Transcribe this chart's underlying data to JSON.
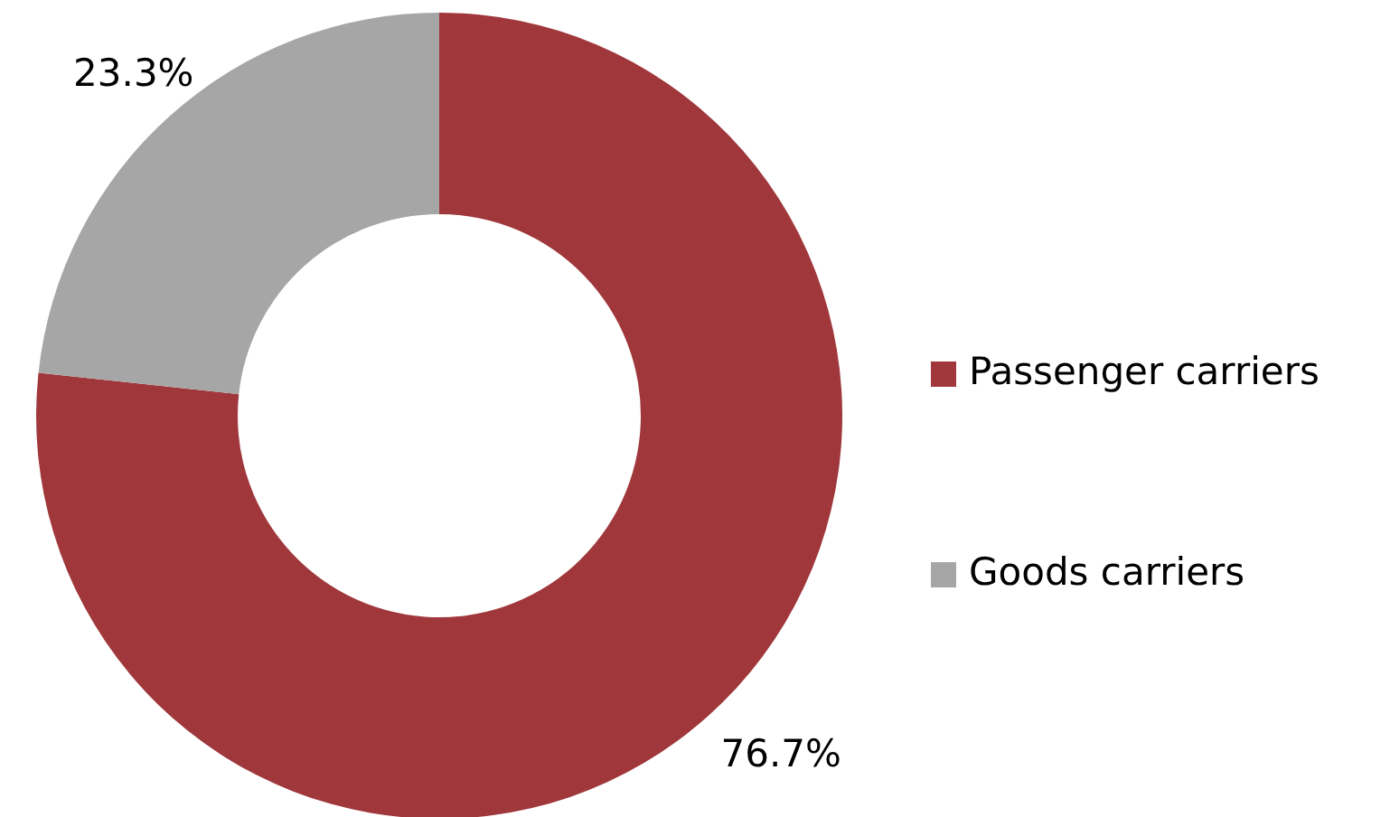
{
  "chart_data": {
    "type": "donut",
    "categories": [
      "Passenger carriers",
      "Goods carriers"
    ],
    "values": [
      76.7,
      23.3
    ],
    "colors": [
      "#a0373b",
      "#a6a6a6"
    ],
    "value_labels": [
      "76.7%",
      "23.3%"
    ],
    "legend": "right"
  }
}
